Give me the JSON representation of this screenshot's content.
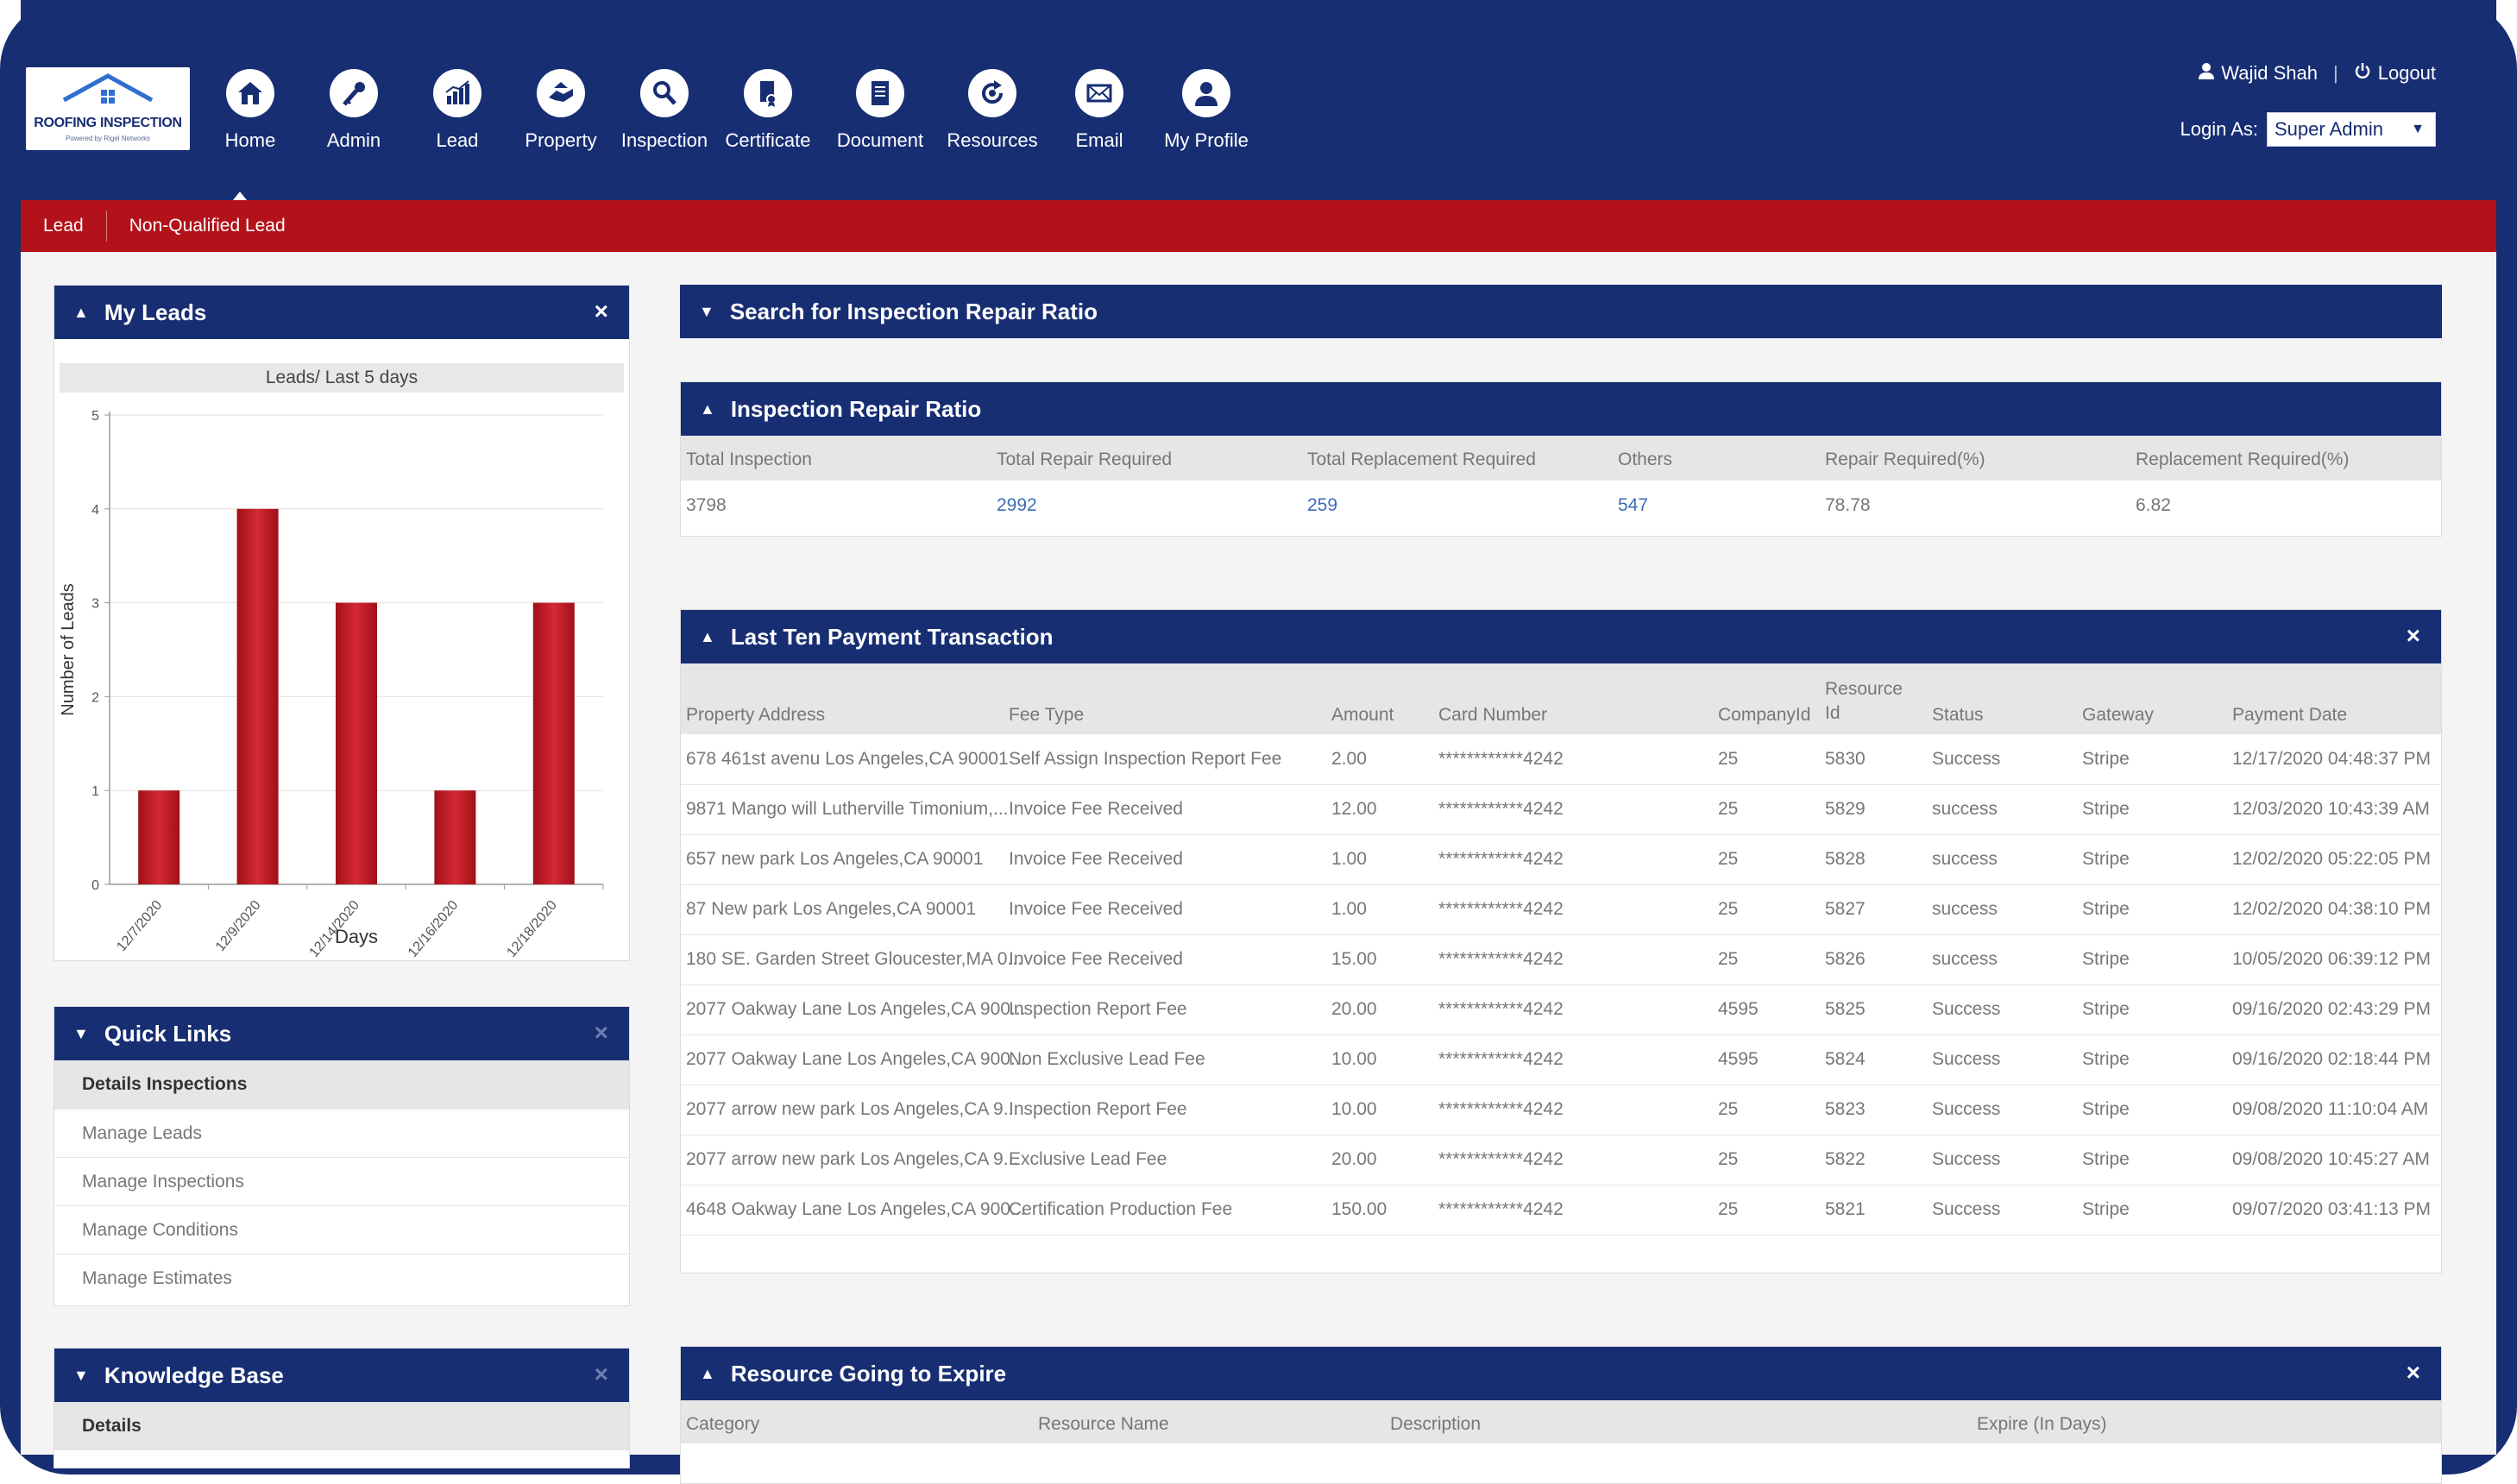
{
  "app": {
    "logo_title": "ROOFING INSPECTION",
    "logo_subtitle": "Powered by Rigel Networks"
  },
  "nav": {
    "items": [
      {
        "label": "Home",
        "icon": "home-icon"
      },
      {
        "label": "Admin",
        "icon": "key-icon"
      },
      {
        "label": "Lead",
        "icon": "chart-icon"
      },
      {
        "label": "Property",
        "icon": "handshake-icon"
      },
      {
        "label": "Inspection",
        "icon": "magnifier-icon"
      },
      {
        "label": "Certificate",
        "icon": "certificate-icon"
      },
      {
        "label": "Document",
        "icon": "document-icon"
      },
      {
        "label": "Resources",
        "icon": "refresh-icon"
      },
      {
        "label": "Email",
        "icon": "envelope-icon"
      },
      {
        "label": "My Profile",
        "icon": "user-icon"
      }
    ]
  },
  "user": {
    "name": "Wajid Shah",
    "logout": "Logout",
    "login_as_label": "Login As:",
    "login_as_value": "Super Admin"
  },
  "subnav": {
    "items": [
      "Lead",
      "Non-Qualified Lead"
    ]
  },
  "my_leads": {
    "title": "My Leads",
    "close": "×"
  },
  "chart_data": {
    "type": "bar",
    "title": "Leads/ Last 5 days",
    "xlabel": "Days",
    "ylabel": "Number of Leads",
    "categories": [
      "12/7/2020",
      "12/9/2020",
      "12/14/2020",
      "12/16/2020",
      "12/18/2020"
    ],
    "values": [
      1,
      4,
      3,
      1,
      3
    ],
    "ylim": [
      0,
      5
    ],
    "yticks": [
      "0",
      "1",
      "2",
      "3",
      "4",
      "5"
    ],
    "grid": true,
    "bar_color": "#c0161f"
  },
  "quick_links": {
    "title": "Quick Links",
    "close": "×",
    "items": [
      "Details Inspections",
      "Manage Leads",
      "Manage Inspections",
      "Manage Conditions",
      "Manage Estimates"
    ]
  },
  "knowledge_base": {
    "title": "Knowledge Base",
    "close": "×",
    "items": [
      "Details"
    ]
  },
  "search_panel": {
    "title": "Search for Inspection Repair Ratio"
  },
  "repair_ratio": {
    "title": "Inspection Repair Ratio",
    "headers": [
      "Total Inspection",
      "Total Repair Required",
      "Total Replacement Required",
      "Others",
      "Repair Required(%)",
      "Replacement Required(%)"
    ],
    "row": [
      "3798",
      "2992",
      "259",
      "547",
      "78.78",
      "6.82"
    ]
  },
  "payments": {
    "title": "Last Ten Payment Transaction",
    "close": "×",
    "headers": [
      "Property Address",
      "Fee Type",
      "Amount",
      "Card Number",
      "CompanyId",
      "Resource Id",
      "Status",
      "Gateway",
      "Payment Date"
    ],
    "rows": [
      [
        "678 461st avenu Los Angeles,CA 90001",
        "Self Assign Inspection Report Fee",
        "2.00",
        "************4242",
        "25",
        "5830",
        "Success",
        "Stripe",
        "12/17/2020 04:48:37 PM"
      ],
      [
        "9871 Mango will Lutherville Timonium,...",
        "Invoice Fee Received",
        "12.00",
        "************4242",
        "25",
        "5829",
        "success",
        "Stripe",
        "12/03/2020 10:43:39 AM"
      ],
      [
        "657 new park Los Angeles,CA 90001",
        "Invoice Fee Received",
        "1.00",
        "************4242",
        "25",
        "5828",
        "success",
        "Stripe",
        "12/02/2020 05:22:05 PM"
      ],
      [
        "87 New park Los Angeles,CA 90001",
        "Invoice Fee Received",
        "1.00",
        "************4242",
        "25",
        "5827",
        "success",
        "Stripe",
        "12/02/2020 04:38:10 PM"
      ],
      [
        "180 SE. Garden Street Gloucester,MA 0...",
        "Invoice Fee Received",
        "15.00",
        "************4242",
        "25",
        "5826",
        "success",
        "Stripe",
        "10/05/2020 06:39:12 PM"
      ],
      [
        "2077 Oakway Lane Los Angeles,CA 900...",
        "Inspection Report Fee",
        "20.00",
        "************4242",
        "4595",
        "5825",
        "Success",
        "Stripe",
        "09/16/2020 02:43:29 PM"
      ],
      [
        "2077 Oakway Lane Los Angeles,CA 900...",
        "Non Exclusive Lead Fee",
        "10.00",
        "************4242",
        "4595",
        "5824",
        "Success",
        "Stripe",
        "09/16/2020 02:18:44 PM"
      ],
      [
        "2077 arrow new park Los Angeles,CA 9...",
        "Inspection Report Fee",
        "10.00",
        "************4242",
        "25",
        "5823",
        "Success",
        "Stripe",
        "09/08/2020 11:10:04 AM"
      ],
      [
        "2077 arrow new park Los Angeles,CA 9...",
        "Exclusive Lead Fee",
        "20.00",
        "************4242",
        "25",
        "5822",
        "Success",
        "Stripe",
        "09/08/2020 10:45:27 AM"
      ],
      [
        "4648 Oakway Lane Los Angeles,CA 900...",
        "Certification Production Fee",
        "150.00",
        "************4242",
        "25",
        "5821",
        "Success",
        "Stripe",
        "09/07/2020 03:41:13 PM"
      ]
    ]
  },
  "resources": {
    "title": "Resource Going to Expire",
    "close": "×",
    "headers": [
      "Category",
      "Resource Name",
      "Description",
      "Expire (In Days)"
    ]
  },
  "colors": {
    "navy": "#172e73",
    "red": "#b3121b",
    "link": "#3b6cb5"
  }
}
